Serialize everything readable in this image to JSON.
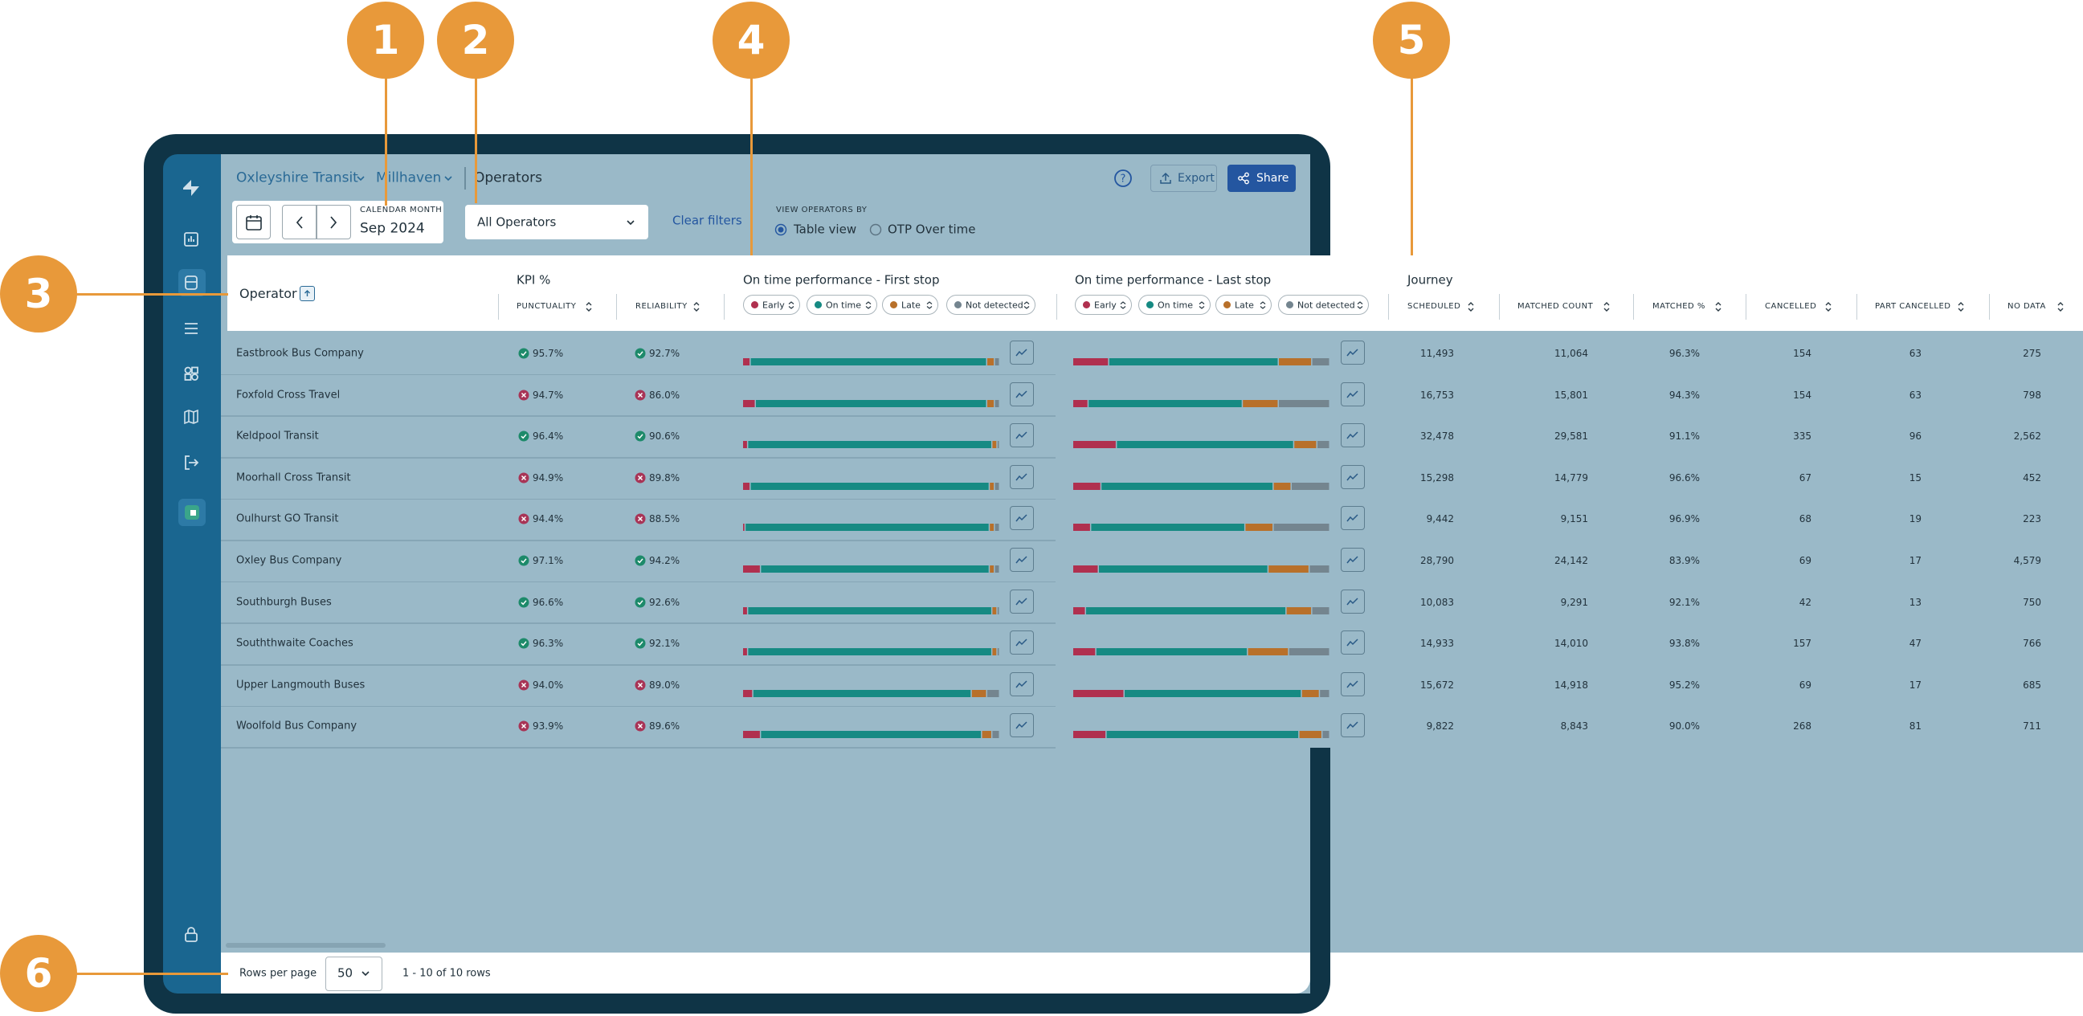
{
  "callouts": [
    "1",
    "2",
    "3",
    "4",
    "5",
    "6"
  ],
  "breadcrumb": {
    "organisation": "Oxleyshire Transit",
    "region": "Millhaven",
    "page": "Operators"
  },
  "actions": {
    "export": "Export",
    "share": "Share"
  },
  "date_picker": {
    "label": "CALENDAR MONTH",
    "value": "Sep 2024"
  },
  "operator_filter": "All Operators",
  "clear_filters": "Clear filters",
  "view_toggle": {
    "label": "VIEW OPERATORS BY",
    "options": [
      "Table view",
      "OTP Over time"
    ],
    "selected": 0
  },
  "table": {
    "headers": {
      "operator": "Operator",
      "kpi": "KPI %",
      "punctuality": "PUNCTUALITY",
      "reliability": "RELIABILITY",
      "first_stop": "On time performance - First stop",
      "last_stop": "On time performance - Last stop",
      "journey": "Journey",
      "scheduled": "SCHEDULED",
      "matched_count": "MATCHED COUNT",
      "matched_pct": "MATCHED %",
      "cancelled": "CANCELLED",
      "part_cancelled": "PART CANCELLED",
      "no_data": "NO DATA"
    },
    "otp_segments": [
      {
        "name": "Early",
        "color": "#b0304f"
      },
      {
        "name": "On time",
        "color": "#168a83"
      },
      {
        "name": "Late",
        "color": "#b8702a"
      },
      {
        "name": "Not detected",
        "color": "#74858f"
      }
    ],
    "rows": [
      {
        "operator": "Eastbrook Bus Company",
        "punctuality": "95.7%",
        "punctuality_on_target": true,
        "reliability": "92.7%",
        "reliability_on_target": true,
        "first_stop": [
          3,
          92,
          3,
          2
        ],
        "last_stop": [
          14,
          66,
          13,
          7
        ],
        "scheduled": "11,493",
        "matched_count": "11,064",
        "matched_pct": "96.3%",
        "cancelled": "154",
        "part_cancelled": "63",
        "no_data": "275"
      },
      {
        "operator": "Foxfold Cross Travel",
        "punctuality": "94.7%",
        "punctuality_on_target": false,
        "reliability": "86.0%",
        "reliability_on_target": false,
        "first_stop": [
          5,
          90,
          3,
          2
        ],
        "last_stop": [
          6,
          60,
          14,
          20
        ],
        "scheduled": "16,753",
        "matched_count": "15,801",
        "matched_pct": "94.3%",
        "cancelled": "154",
        "part_cancelled": "63",
        "no_data": "798"
      },
      {
        "operator": "Keldpool Transit",
        "punctuality": "96.4%",
        "punctuality_on_target": true,
        "reliability": "90.6%",
        "reliability_on_target": true,
        "first_stop": [
          2,
          95,
          2,
          1
        ],
        "last_stop": [
          17,
          69,
          9,
          5
        ],
        "scheduled": "32,478",
        "matched_count": "29,581",
        "matched_pct": "91.1%",
        "cancelled": "335",
        "part_cancelled": "96",
        "no_data": "2,562"
      },
      {
        "operator": "Moorhall Cross Transit",
        "punctuality": "94.9%",
        "punctuality_on_target": false,
        "reliability": "89.8%",
        "reliability_on_target": false,
        "first_stop": [
          3,
          93,
          2,
          2
        ],
        "last_stop": [
          11,
          67,
          7,
          15
        ],
        "scheduled": "15,298",
        "matched_count": "14,779",
        "matched_pct": "96.6%",
        "cancelled": "67",
        "part_cancelled": "15",
        "no_data": "452"
      },
      {
        "operator": "Oulhurst GO Transit",
        "punctuality": "94.4%",
        "punctuality_on_target": false,
        "reliability": "88.5%",
        "reliability_on_target": false,
        "first_stop": [
          1,
          95,
          2,
          2
        ],
        "last_stop": [
          7,
          60,
          11,
          22
        ],
        "scheduled": "9,442",
        "matched_count": "9,151",
        "matched_pct": "96.9%",
        "cancelled": "68",
        "part_cancelled": "19",
        "no_data": "223"
      },
      {
        "operator": "Oxley Bus Company",
        "punctuality": "97.1%",
        "punctuality_on_target": true,
        "reliability": "94.2%",
        "reliability_on_target": true,
        "first_stop": [
          7,
          89,
          2,
          2
        ],
        "last_stop": [
          10,
          66,
          16,
          8
        ],
        "scheduled": "28,790",
        "matched_count": "24,142",
        "matched_pct": "83.9%",
        "cancelled": "69",
        "part_cancelled": "17",
        "no_data": "4,579"
      },
      {
        "operator": "Southburgh Buses",
        "punctuality": "96.6%",
        "punctuality_on_target": true,
        "reliability": "92.6%",
        "reliability_on_target": true,
        "first_stop": [
          2,
          95,
          2,
          1
        ],
        "last_stop": [
          5,
          78,
          10,
          7
        ],
        "scheduled": "10,083",
        "matched_count": "9,291",
        "matched_pct": "92.1%",
        "cancelled": "42",
        "part_cancelled": "13",
        "no_data": "750"
      },
      {
        "operator": "Souththwaite Coaches",
        "punctuality": "96.3%",
        "punctuality_on_target": true,
        "reliability": "92.1%",
        "reliability_on_target": true,
        "first_stop": [
          2,
          95,
          2,
          1
        ],
        "last_stop": [
          9,
          59,
          16,
          16
        ],
        "scheduled": "14,933",
        "matched_count": "14,010",
        "matched_pct": "93.8%",
        "cancelled": "157",
        "part_cancelled": "47",
        "no_data": "766"
      },
      {
        "operator": "Upper Langmouth Buses",
        "punctuality": "94.0%",
        "punctuality_on_target": false,
        "reliability": "89.0%",
        "reliability_on_target": false,
        "first_stop": [
          4,
          85,
          6,
          5
        ],
        "last_stop": [
          20,
          69,
          7,
          4
        ],
        "scheduled": "15,672",
        "matched_count": "14,918",
        "matched_pct": "95.2%",
        "cancelled": "69",
        "part_cancelled": "17",
        "no_data": "685"
      },
      {
        "operator": "Woolfold Bus Company",
        "punctuality": "93.9%",
        "punctuality_on_target": false,
        "reliability": "89.6%",
        "reliability_on_target": false,
        "first_stop": [
          7,
          86,
          4,
          3
        ],
        "last_stop": [
          13,
          75,
          9,
          3
        ],
        "scheduled": "9,822",
        "matched_count": "8,843",
        "matched_pct": "90.0%",
        "cancelled": "268",
        "part_cancelled": "81",
        "no_data": "711"
      }
    ]
  },
  "pagination": {
    "rows_per_page_label": "Rows per page",
    "rows_per_page": "50",
    "range": "1 - 10 of 10 rows"
  }
}
